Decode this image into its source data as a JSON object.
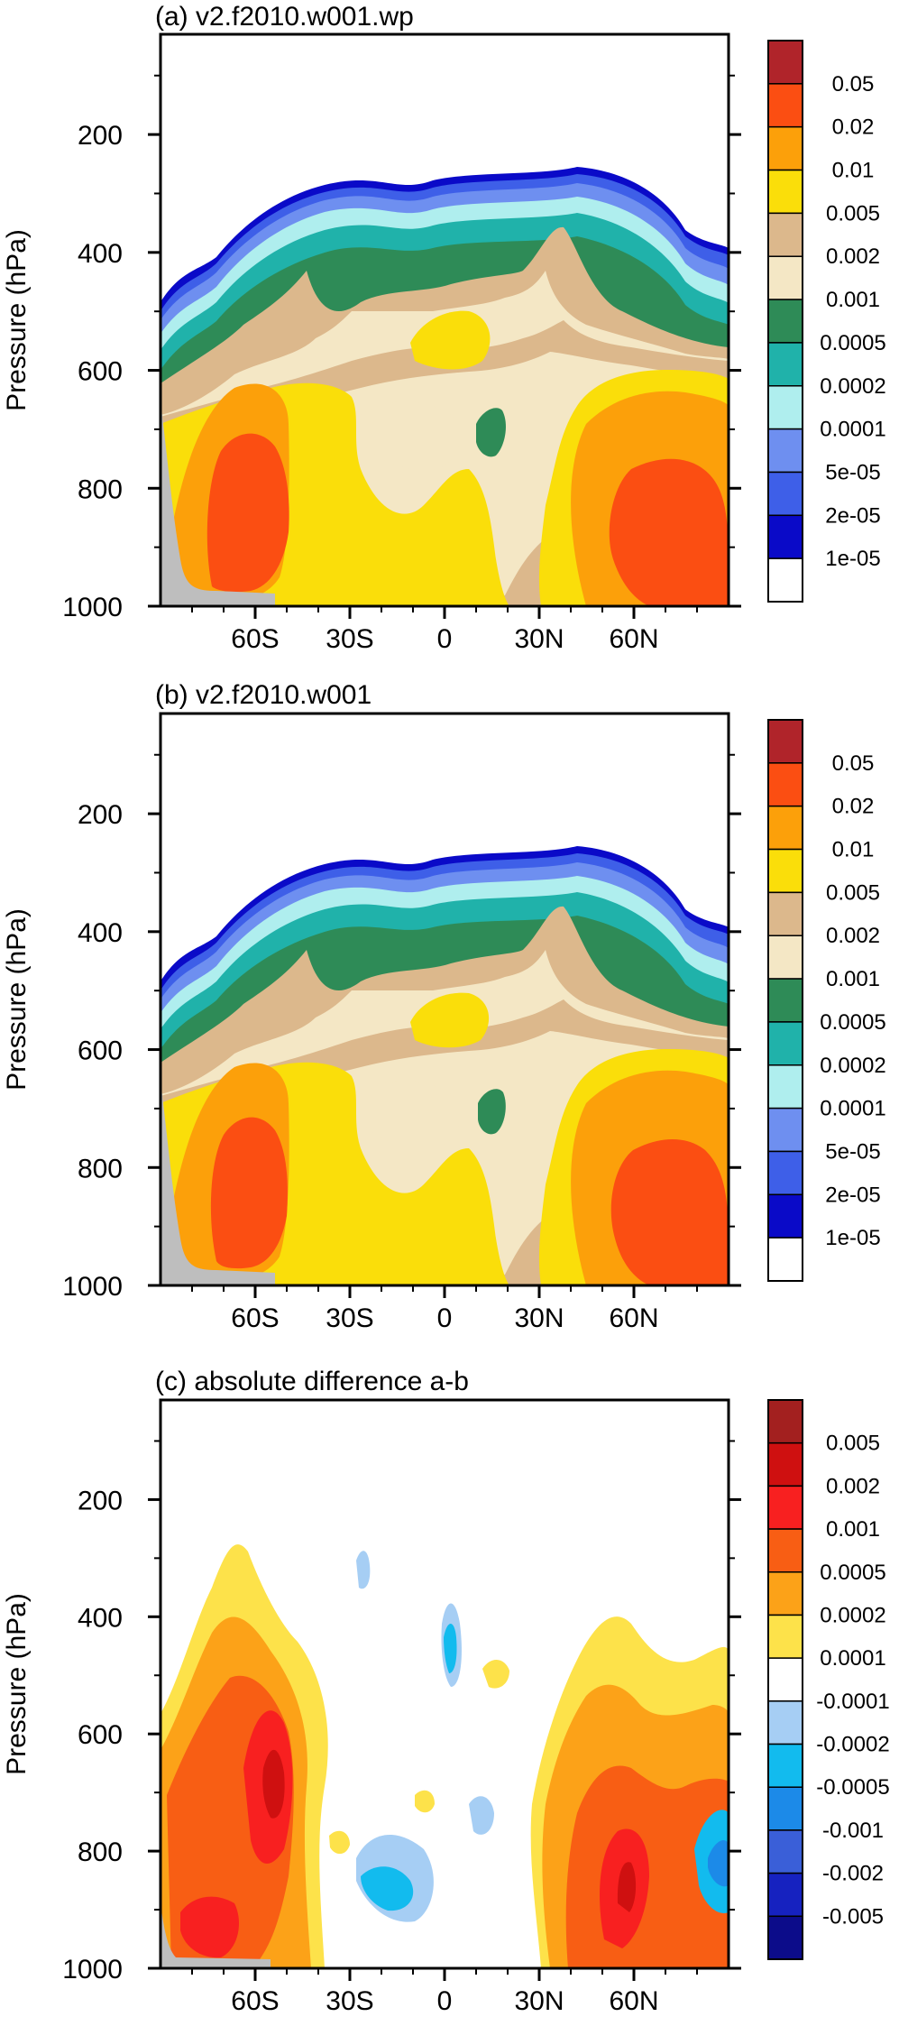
{
  "chart_data": [
    {
      "type": "contour",
      "title": "(a) v2.f2010.w001.wp",
      "ylabel": "Pressure (hPa)",
      "xlabel": "",
      "x_ticks": [
        "60S",
        "30S",
        "0",
        "30N",
        "60N"
      ],
      "x_tick_values": [
        -60,
        -30,
        0,
        30,
        60
      ],
      "xlim": [
        -90,
        90
      ],
      "y_ticks": [
        "200",
        "400",
        "600",
        "800",
        "1000"
      ],
      "y_tick_values": [
        200,
        400,
        600,
        800,
        1000
      ],
      "ylim": [
        1000,
        30
      ],
      "y_inverted": true,
      "colorbar_labels": [
        "0.05",
        "0.02",
        "0.01",
        "0.005",
        "0.002",
        "0.001",
        "0.0005",
        "0.0002",
        "0.0001",
        "5e-05",
        "2e-05",
        "1e-05"
      ],
      "colorbar_colors": [
        "#b0242a",
        "#fb4e12",
        "#fca00a",
        "#fade0a",
        "#dcb88c",
        "#f4e7c5",
        "#2e8b57",
        "#20b2aa",
        "#afeeee",
        "#6e8ff0",
        "#3e5fe8",
        "#0a0ac8",
        "#ffffff"
      ]
    },
    {
      "type": "contour",
      "title": "(b) v2.f2010.w001",
      "ylabel": "Pressure (hPa)",
      "xlabel": "",
      "x_ticks": [
        "60S",
        "30S",
        "0",
        "30N",
        "60N"
      ],
      "x_tick_values": [
        -60,
        -30,
        0,
        30,
        60
      ],
      "xlim": [
        -90,
        90
      ],
      "y_ticks": [
        "200",
        "400",
        "600",
        "800",
        "1000"
      ],
      "y_tick_values": [
        200,
        400,
        600,
        800,
        1000
      ],
      "ylim": [
        1000,
        30
      ],
      "y_inverted": true,
      "colorbar_labels": [
        "0.05",
        "0.02",
        "0.01",
        "0.005",
        "0.002",
        "0.001",
        "0.0005",
        "0.0002",
        "0.0001",
        "5e-05",
        "2e-05",
        "1e-05"
      ],
      "colorbar_colors": [
        "#b0242a",
        "#fb4e12",
        "#fca00a",
        "#fade0a",
        "#dcb88c",
        "#f4e7c5",
        "#2e8b57",
        "#20b2aa",
        "#afeeee",
        "#6e8ff0",
        "#3e5fe8",
        "#0a0ac8",
        "#ffffff"
      ]
    },
    {
      "type": "contour",
      "title": "(c) absolute difference a-b",
      "ylabel": "Pressure (hPa)",
      "xlabel": "",
      "x_ticks": [
        "60S",
        "30S",
        "0",
        "30N",
        "60N"
      ],
      "x_tick_values": [
        -60,
        -30,
        0,
        30,
        60
      ],
      "xlim": [
        -90,
        90
      ],
      "y_ticks": [
        "200",
        "400",
        "600",
        "800",
        "1000"
      ],
      "y_tick_values": [
        200,
        400,
        600,
        800,
        1000
      ],
      "ylim": [
        1000,
        30
      ],
      "y_inverted": true,
      "colorbar_labels": [
        "0.005",
        "0.002",
        "0.001",
        "0.0005",
        "0.0002",
        "0.0001",
        "-0.0001",
        "-0.0002",
        "-0.0005",
        "-0.001",
        "-0.002",
        "-0.005"
      ],
      "colorbar_colors": [
        "#a3201f",
        "#cf1010",
        "#f82020",
        "#f85e14",
        "#fca218",
        "#fde24a",
        "#ffffff",
        "#a6cef4",
        "#12bbee",
        "#1c8ae8",
        "#3a5fd8",
        "#1622c0",
        "#0c0c8a"
      ]
    }
  ]
}
